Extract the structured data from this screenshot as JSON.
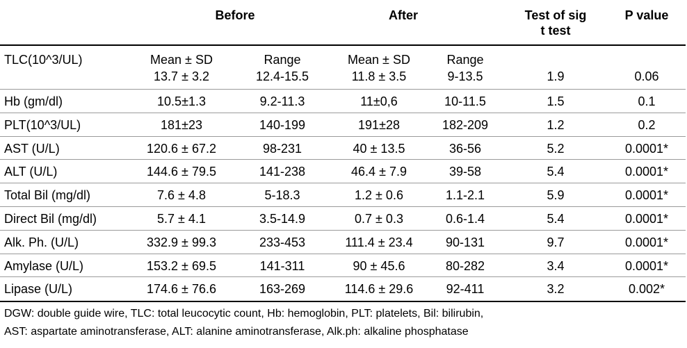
{
  "table": {
    "headers": {
      "before": "Before",
      "after": "After",
      "test_line1": "Test of sig",
      "test_line2": "t test",
      "pvalue": "P value"
    },
    "first_row": {
      "label": "TLC(10^3/UL)",
      "before_mean_label": "Mean ± SD",
      "before_range_label": "Range",
      "after_mean_label": "Mean ± SD",
      "after_range_label": "Range",
      "before_mean": "13.7 ± 3.2",
      "before_range": "12.4-15.5",
      "after_mean": "11.8 ± 3.5",
      "after_range": "9-13.5",
      "t": "1.9",
      "p": "0.06"
    },
    "rows": [
      {
        "label": "Hb (gm/dl)",
        "before_mean": "10.5±1.3",
        "before_range": "9.2-11.3",
        "after_mean": "11±0,6",
        "after_range": "10-11.5",
        "t": "1.5",
        "p": "0.1"
      },
      {
        "label": "PLT(10^3/UL)",
        "before_mean": "181±23",
        "before_range": "140-199",
        "after_mean": "191±28",
        "after_range": "182-209",
        "t": "1.2",
        "p": "0.2"
      },
      {
        "label": "AST (U/L)",
        "before_mean": "120.6 ± 67.2",
        "before_range": "98-231",
        "after_mean": "40 ± 13.5",
        "after_range": "36-56",
        "t": "5.2",
        "p": "0.0001*"
      },
      {
        "label": "ALT (U/L)",
        "before_mean": "144.6 ± 79.5",
        "before_range": "141-238",
        "after_mean": "46.4 ± 7.9",
        "after_range": "39-58",
        "t": "5.4",
        "p": "0.0001*"
      },
      {
        "label": "Total Bil (mg/dl)",
        "before_mean": "7.6 ± 4.8",
        "before_range": "5-18.3",
        "after_mean": "1.2 ± 0.6",
        "after_range": "1.1-2.1",
        "t": "5.9",
        "p": "0.0001*"
      },
      {
        "label": "Direct Bil (mg/dl)",
        "before_mean": "5.7 ± 4.1",
        "before_range": "3.5-14.9",
        "after_mean": "0.7 ± 0.3",
        "after_range": "0.6-1.4",
        "t": "5.4",
        "p": "0.0001*"
      },
      {
        "label": "Alk. Ph. (U/L)",
        "before_mean": "332.9 ± 99.3",
        "before_range": "233-453",
        "after_mean": "111.4 ± 23.4",
        "after_range": "90-131",
        "t": "9.7",
        "p": "0.0001*"
      },
      {
        "label": "Amylase (U/L)",
        "before_mean": "153.2 ± 69.5",
        "before_range": "141-311",
        "after_mean": "90 ± 45.6",
        "after_range": "80-282",
        "t": "3.4",
        "p": "0.0001*"
      },
      {
        "label": "Lipase (U/L)",
        "before_mean": "174.6 ± 76.6",
        "before_range": "163-269",
        "after_mean": "114.6 ± 29.6",
        "after_range": "92-411",
        "t": "3.2",
        "p": "0.002*"
      }
    ]
  },
  "footnote": {
    "line1": "DGW: double guide wire, TLC: total leucocytic count, Hb: hemoglobin, PLT: platelets, Bil: bilirubin,",
    "line2": "AST: aspartate aminotransferase, ALT: alanine aminotransferase, Alk.ph: alkaline phosphatase"
  }
}
